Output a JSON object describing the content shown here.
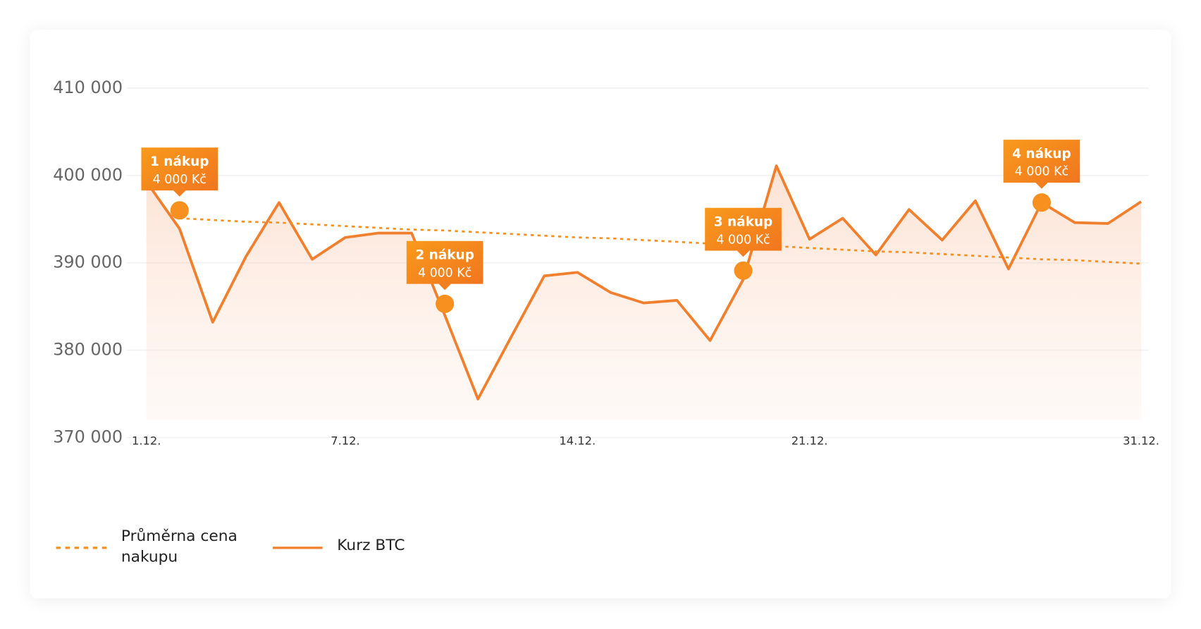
{
  "chart_data": {
    "type": "line",
    "categories": [
      "1.12.",
      null,
      null,
      null,
      null,
      null,
      "7.12.",
      null,
      null,
      null,
      null,
      null,
      null,
      "14.12.",
      null,
      null,
      null,
      null,
      null,
      null,
      "21.12.",
      null,
      null,
      null,
      null,
      null,
      null,
      null,
      null,
      null,
      "31.12."
    ],
    "series": [
      {
        "name": "Průměrna cena nakupu",
        "color": "#f7901e",
        "dashed": true,
        "values": [
          null,
          395100,
          394900,
          394700,
          394600,
          394400,
          394200,
          394000,
          393800,
          393700,
          393500,
          393300,
          393100,
          392900,
          392800,
          392600,
          392400,
          392200,
          392100,
          391900,
          391700,
          391500,
          391300,
          391200,
          391000,
          390800,
          390600,
          390400,
          390300,
          390100,
          389900
        ]
      },
      {
        "name": "Kurz BTC",
        "color": "#f07f2e",
        "area": true,
        "values": [
          399300,
          393900,
          383200,
          390700,
          396900,
          390400,
          392900,
          393400,
          393400,
          384000,
          374400,
          381500,
          388500,
          388900,
          386600,
          385400,
          385700,
          381100,
          388100,
          401100,
          392700,
          395100,
          390900,
          396100,
          392600,
          397100,
          389300,
          396900,
          394600,
          394500,
          397000
        ]
      }
    ],
    "purchases": {
      "color": "#f7901e",
      "values": [
        null,
        396000,
        null,
        null,
        null,
        null,
        null,
        null,
        null,
        385300,
        null,
        null,
        null,
        null,
        null,
        null,
        null,
        null,
        389100,
        null,
        null,
        null,
        null,
        null,
        null,
        null,
        null,
        396900,
        null,
        null,
        null
      ],
      "annotations": [
        {
          "title": "1 nákup",
          "text": "4 000 Kč"
        },
        {
          "title": "2 nákup",
          "text": "4 000 Kč"
        },
        {
          "title": "3 nákup",
          "text": "4 000 Kč"
        },
        {
          "title": "4 nákup",
          "text": "4 000 Kč"
        }
      ]
    },
    "ylim": [
      370000,
      410000
    ],
    "yticks": [
      {
        "value": 370000,
        "label": "370 000"
      },
      {
        "value": 380000,
        "label": "380 000"
      },
      {
        "value": 390000,
        "label": "390 000"
      },
      {
        "value": 400000,
        "label": "400 000"
      },
      {
        "value": 410000,
        "label": "410 000"
      }
    ],
    "grid": true
  }
}
